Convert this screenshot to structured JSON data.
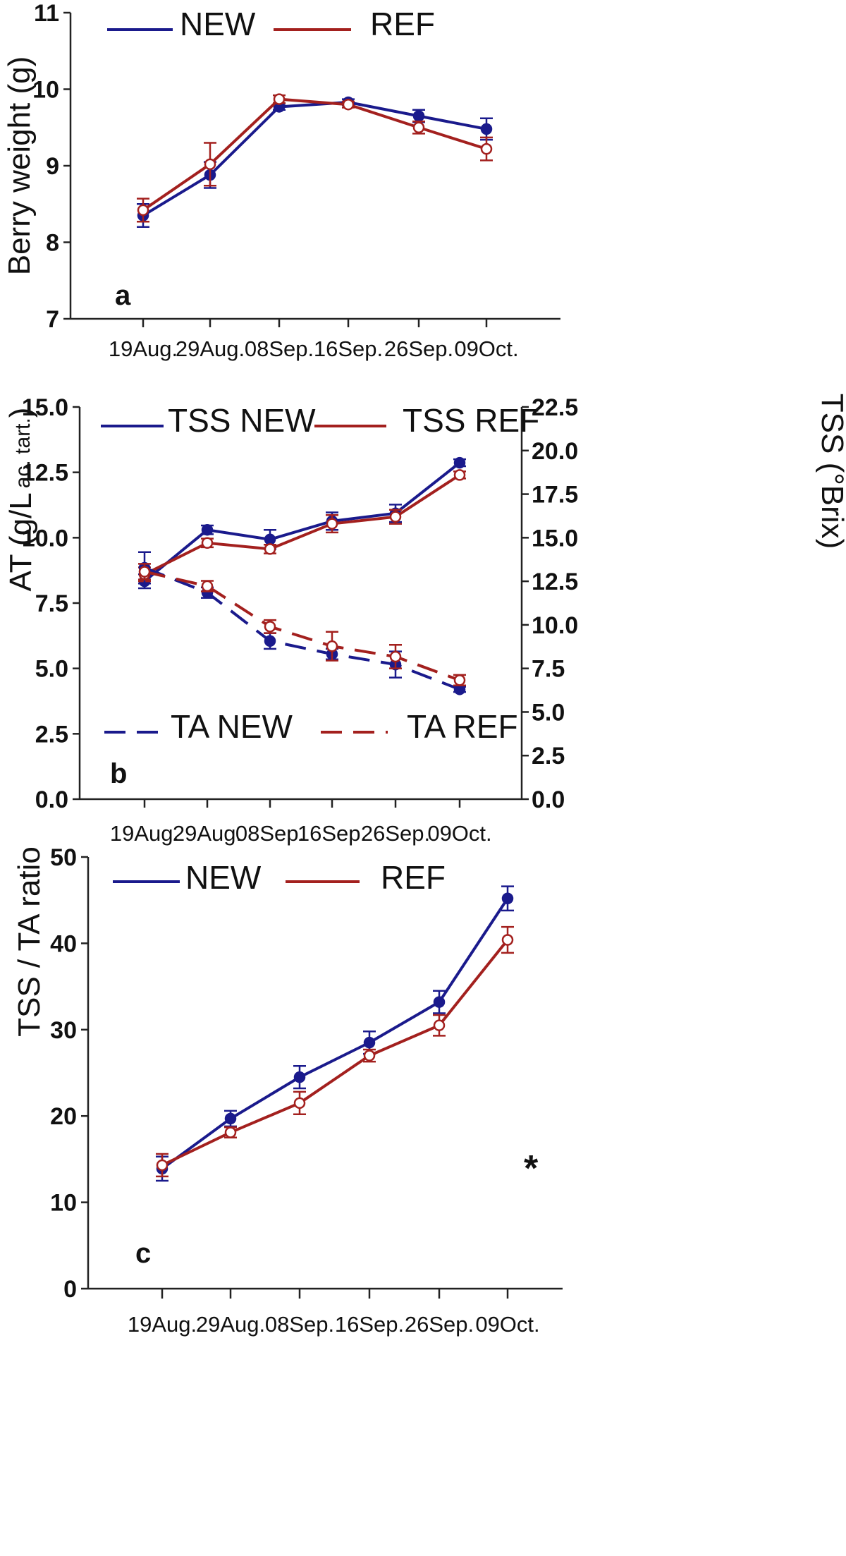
{
  "colors": {
    "new": "#1a1a8c",
    "ref": "#a3201e",
    "axis": "#222222"
  },
  "chart_data": [
    {
      "type": "line",
      "panel_label": "a",
      "categories": [
        "19Aug.",
        "29Aug.",
        "08Sep.",
        "16Sep.",
        "26Sep.",
        "09Oct."
      ],
      "ylabel": "Berry weight (g)",
      "ylim": [
        7,
        11
      ],
      "yticks": [
        "7",
        "8",
        "9",
        "10",
        "11"
      ],
      "legend_placement": "top",
      "series": [
        {
          "name": "NEW",
          "color_key": "new",
          "marker": "filled",
          "dash": "solid",
          "values": [
            8.35,
            8.88,
            9.77,
            9.83,
            9.65,
            9.48
          ],
          "errors": [
            0.15,
            0.17,
            0.04,
            0.04,
            0.08,
            0.14
          ]
        },
        {
          "name": "REF",
          "color_key": "ref",
          "marker": "open",
          "dash": "solid",
          "values": [
            8.42,
            9.02,
            9.87,
            9.8,
            9.5,
            9.22
          ],
          "errors": [
            0.15,
            0.28,
            0.05,
            0.04,
            0.08,
            0.15
          ]
        }
      ]
    },
    {
      "type": "line",
      "panel_label": "b",
      "categories": [
        "19Aug.",
        "29Aug.",
        "08Sep.",
        "16Sep.",
        "26Sep.",
        "09Oct."
      ],
      "ylabel_main": "AT (g/L",
      "ylabel_sub": "ac. tart.",
      "ylabel_close": ")",
      "y2label": "TSS (°Brix)",
      "ylim": [
        0,
        15
      ],
      "yticks": [
        "0.0",
        "2.5",
        "5.0",
        "7.5",
        "10.0",
        "12.5",
        "15.0"
      ],
      "y2lim": [
        0,
        22.5
      ],
      "y2ticks": [
        "0.0",
        "2.5",
        "5.0",
        "7.5",
        "10.0",
        "12.5",
        "15.0",
        "17.5",
        "20.0",
        "22.5"
      ],
      "series": [
        {
          "name": "TSS NEW",
          "color_key": "new",
          "marker": "filled",
          "dash": "solid",
          "axis": "right",
          "values": [
            12.5,
            15.45,
            14.9,
            15.95,
            16.4,
            19.3
          ],
          "errors": [
            0.4,
            0.25,
            0.55,
            0.5,
            0.5,
            0.2
          ]
        },
        {
          "name": "TSS REF",
          "color_key": "ref",
          "marker": "open",
          "dash": "solid",
          "axis": "right",
          "values": [
            12.9,
            14.7,
            14.35,
            15.8,
            16.2,
            18.6
          ],
          "errors": [
            0.4,
            0.25,
            0.25,
            0.5,
            0.4,
            0.2
          ]
        },
        {
          "name": "TA NEW",
          "color_key": "new",
          "marker": "filled",
          "dash": "dashed",
          "axis": "left",
          "values": [
            8.85,
            7.9,
            6.05,
            5.55,
            5.15,
            4.2
          ],
          "errors": [
            0.6,
            0.2,
            0.3,
            0.2,
            0.5,
            0.1
          ]
        },
        {
          "name": "TA REF",
          "color_key": "ref",
          "marker": "open",
          "dash": "dashed",
          "axis": "left",
          "values": [
            8.7,
            8.15,
            6.6,
            5.85,
            5.45,
            4.55
          ],
          "errors": [
            0.3,
            0.2,
            0.25,
            0.55,
            0.45,
            0.2
          ]
        }
      ]
    },
    {
      "type": "line",
      "panel_label": "c",
      "categories": [
        "19Aug.",
        "29Aug.",
        "08Sep.",
        "16Sep.",
        "26Sep.",
        "09Oct."
      ],
      "ylabel": "TSS / TA ratio",
      "ylim": [
        0,
        50
      ],
      "yticks": [
        "0",
        "10",
        "20",
        "30",
        "40",
        "50"
      ],
      "annotation": "*",
      "series": [
        {
          "name": "NEW",
          "color_key": "new",
          "marker": "filled",
          "dash": "solid",
          "values": [
            13.9,
            19.7,
            24.5,
            28.5,
            33.2,
            45.2
          ],
          "errors": [
            1.4,
            0.9,
            1.3,
            1.3,
            1.3,
            1.4
          ]
        },
        {
          "name": "REF",
          "color_key": "ref",
          "marker": "open",
          "dash": "solid",
          "values": [
            14.3,
            18.1,
            21.5,
            27.0,
            30.5,
            40.4
          ],
          "errors": [
            1.3,
            0.6,
            1.3,
            0.7,
            1.2,
            1.5
          ]
        }
      ]
    }
  ]
}
